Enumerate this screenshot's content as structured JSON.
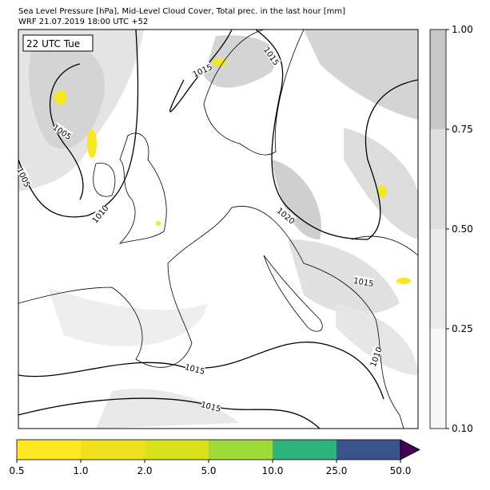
{
  "header": {
    "title": "Sea Level Pressure [hPa], Mid-Level Cloud Cover, Total prec. in the last hour [mm]",
    "subtitle": "WRF 21.07.2019 18:00 UTC +52"
  },
  "map": {
    "time_label": "22 UTC Tue",
    "contour_labels": [
      "1015",
      "1015",
      "1005",
      "1005",
      "1010",
      "1020",
      "1015",
      "1010",
      "1015",
      "1015"
    ]
  },
  "cloud_colorbar": {
    "ticks": [
      "0.10",
      "0.25",
      "0.50",
      "0.75",
      "1.00"
    ],
    "colors": [
      "#f7f7f7",
      "#ebebeb",
      "#dedede",
      "#c8c8c8"
    ]
  },
  "precip_colorbar": {
    "ticks": [
      "0.5",
      "1.0",
      "2.0",
      "5.0",
      "10.0",
      "25.0",
      "50.0"
    ],
    "colors": [
      "#fde725",
      "#f0e11e",
      "#d9e11a",
      "#a0da39",
      "#2eb37c",
      "#3b528b"
    ],
    "extend_color": "#440154"
  }
}
